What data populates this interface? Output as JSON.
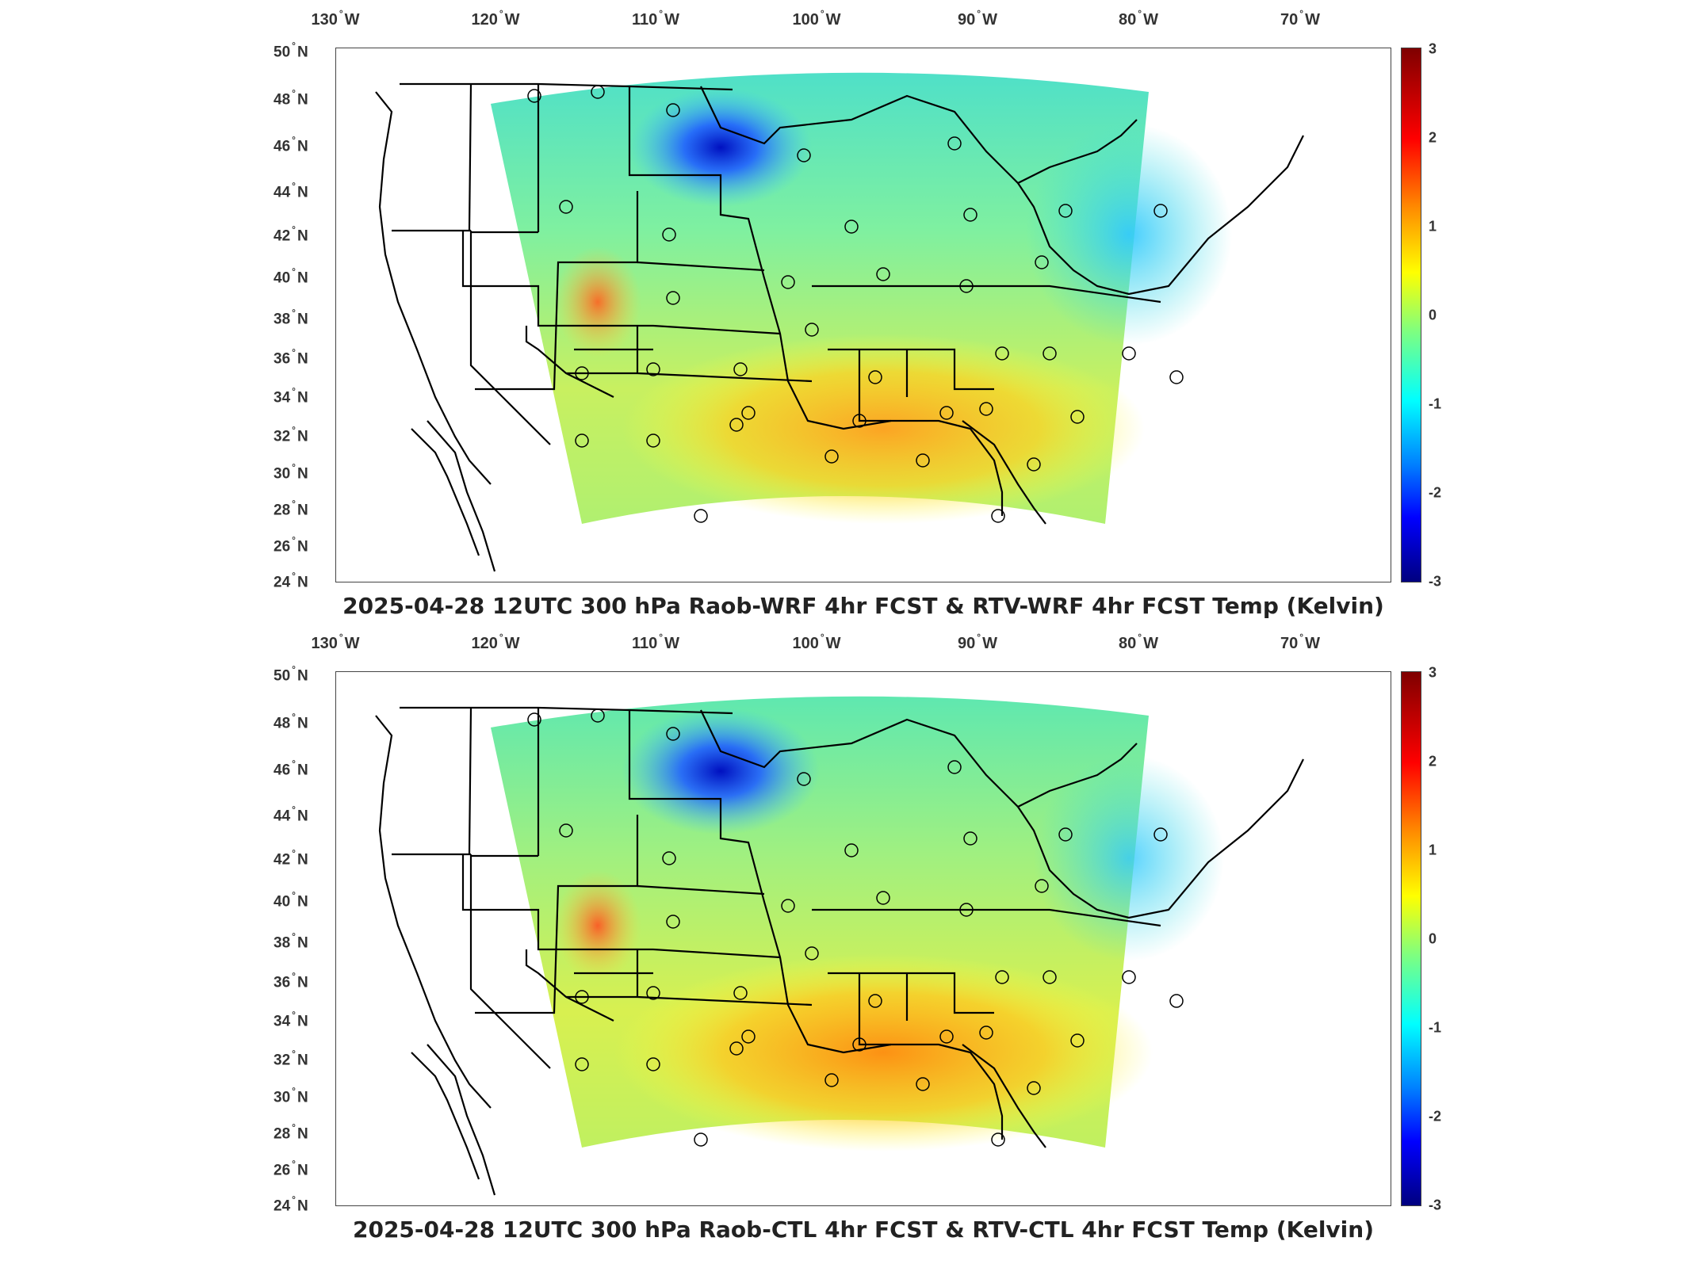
{
  "lon_labels": [
    {
      "deg": "130",
      "hem": "W"
    },
    {
      "deg": "120",
      "hem": "W"
    },
    {
      "deg": "110",
      "hem": "W"
    },
    {
      "deg": "100",
      "hem": "W"
    },
    {
      "deg": "90",
      "hem": "W"
    },
    {
      "deg": "80",
      "hem": "W"
    },
    {
      "deg": "70",
      "hem": "W"
    }
  ],
  "lat_labels": [
    {
      "deg": "50",
      "hem": "N"
    },
    {
      "deg": "48",
      "hem": "N"
    },
    {
      "deg": "46",
      "hem": "N"
    },
    {
      "deg": "44",
      "hem": "N"
    },
    {
      "deg": "42",
      "hem": "N"
    },
    {
      "deg": "40",
      "hem": "N"
    },
    {
      "deg": "38",
      "hem": "N"
    },
    {
      "deg": "36",
      "hem": "N"
    },
    {
      "deg": "34",
      "hem": "N"
    },
    {
      "deg": "32",
      "hem": "N"
    },
    {
      "deg": "30",
      "hem": "N"
    },
    {
      "deg": "28",
      "hem": "N"
    },
    {
      "deg": "26",
      "hem": "N"
    },
    {
      "deg": "24",
      "hem": "N"
    }
  ],
  "colorbar_ticks": [
    "3",
    "2",
    "1",
    "0",
    "-1",
    "-2",
    "-3"
  ],
  "colorbar_range": [
    -3,
    3
  ],
  "colormap": [
    "#7f0000",
    "#ff0000",
    "#ff8c00",
    "#ffff00",
    "#7fff7f",
    "#00ffff",
    "#0080ff",
    "#0000ff",
    "#00007f"
  ],
  "panels": [
    {
      "title": "2025-04-28 12UTC 300 hPa Raob-WRF 4hr FCST & RTV-WRF 4hr FCST Temp (Kelvin)"
    },
    {
      "title": "2025-04-28 12UTC 300 hPa Raob-CTL 4hr FCST & RTV-CTL 4hr FCST Temp (Kelvin)"
    }
  ]
}
